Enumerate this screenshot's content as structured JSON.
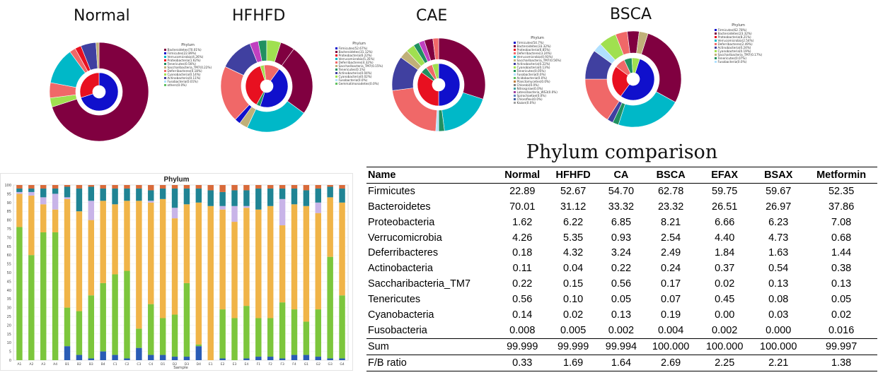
{
  "colors": {
    "Firmicutes": "#1010cc",
    "Bacteroidetes": "#800040",
    "Proteobacteria": "#e81020",
    "Verrucomicrobia": "#00b8c8",
    "Deferribacteres": "#f06868",
    "Actinobacteria": "#4040a0",
    "Saccharibacteria_TM7": "#c0b078",
    "Tenericutes": "#209060",
    "Cyanobacteria": "#a0e050",
    "Fusobacteria": "#b0e0ff",
    "Other": "#c040c0"
  },
  "bar_colors": {
    "s1": "#2a5cb5",
    "s2": "#7cc63c",
    "s3": "#f0b448",
    "s4": "#c8b4e8",
    "s5": "#208494",
    "s6": "#d86a3a"
  },
  "chart_data": [
    {
      "type": "pie",
      "title": "Normal",
      "legend_title": "Phylum",
      "legend": [
        "Bacteroidetes(70.01%)",
        "Firmicutes(22.89%)",
        "Verrucomicrobia(4.26%)",
        "Proteobacteria(1.62%)",
        "Tenericutes(0.56%)",
        "Saccharibacteria_TM7(0.22%)",
        "Deferribacteres(0.18%)",
        "Cyanobacteria(0.14%)",
        "Actinobacteria(0.11%)",
        "Fusobacteria(0.01%)",
        "others(0.0%)"
      ],
      "inner": [
        {
          "name": "Firmicutes",
          "value": 70
        },
        {
          "name": "Proteobacteria",
          "value": 30
        }
      ],
      "outer": [
        {
          "name": "Bacteroidetes",
          "value": 70.01
        },
        {
          "name": "Cyanobacteria",
          "value": 3
        },
        {
          "name": "Deferribacteres",
          "value": 5
        },
        {
          "name": "Verrucomicrobia",
          "value": 12
        },
        {
          "name": "Deferribacteres",
          "value": 2
        },
        {
          "name": "Proteobacteria",
          "value": 2
        },
        {
          "name": "Actinobacteria",
          "value": 5
        },
        {
          "name": "Saccharibacteria_TM7",
          "value": 1
        }
      ]
    },
    {
      "type": "pie",
      "title": "HFHFD",
      "legend_title": "Phylum",
      "legend": [
        "Firmicutes(52.67%)",
        "Bacteroidetes(31.12%)",
        "Proteobacteria(6.22%)",
        "Verrucomicrobia(5.35%)",
        "Deferribacteres(4.32%)",
        "Saccharibacteria_TM7(0.15%)",
        "Tenericutes(0.1%)",
        "Actinobacteria(0.04%)",
        "Cyanobacteria(0.02%)",
        "Fusobacteria(0.0%)",
        "Gemmatimonadetes(0.0%)"
      ],
      "inner": [
        {
          "name": "Firmicutes",
          "value": 45
        },
        {
          "name": "Tenericutes",
          "value": 3
        },
        {
          "name": "Proteobacteria",
          "value": 37
        },
        {
          "name": "Cyanobacteria",
          "value": 3
        },
        {
          "name": "Deferribacteres",
          "value": 12
        }
      ],
      "outer": [
        {
          "name": "Bacteroidetes",
          "value": 25
        },
        {
          "name": "Verrucomicrobia",
          "value": 22
        },
        {
          "name": "Saccharibacteria_TM7",
          "value": 3
        },
        {
          "name": "Firmicutes",
          "value": 2
        },
        {
          "name": "Deferribacteres",
          "value": 20
        },
        {
          "name": "Actinobacteria",
          "value": 12
        },
        {
          "name": "Other",
          "value": 3
        },
        {
          "name": "Tenericutes",
          "value": 3
        },
        {
          "name": "Cyanobacteria",
          "value": 5
        },
        {
          "name": "Bacteroidetes",
          "value": 5
        }
      ]
    },
    {
      "type": "pie",
      "title": "CAE",
      "legend_title": "Phylum",
      "legend": [
        "Firmicutes(54.7%)",
        "Bacteroidetes(33.32%)",
        "Proteobacteria(6.85%)",
        "Deferribacteres(3.24%)",
        "Verrucomicrobia(0.93%)",
        "Saccharibacteria_TM7(0.56%)",
        "Actinobacteria(0.22%)",
        "Cyanobacteria(0.13%)",
        "Tenericutes(0.05%)",
        "Fusobacteria(0.0%)",
        "Acidobacteria(0.0%)",
        "Planctomycetes(0.0%)",
        "Chlorobi(0.0%)",
        "Nitrospirae(0.0%)",
        "Latescibacteria_WS3(0.0%)",
        "Spirochaetae(0.0%)",
        "Chloroflexi(0.0%)",
        "Kazan(0.0%)"
      ],
      "inner": [
        {
          "name": "Firmicutes",
          "value": 50
        },
        {
          "name": "Proteobacteria",
          "value": 35
        },
        {
          "name": "Tenericutes",
          "value": 5
        },
        {
          "name": "Deferribacteres",
          "value": 5
        },
        {
          "name": "Cyanobacteria",
          "value": 5
        }
      ],
      "outer": [
        {
          "name": "Bacteroidetes",
          "value": 30
        },
        {
          "name": "Verrucomicrobia",
          "value": 18
        },
        {
          "name": "Tenericutes",
          "value": 2
        },
        {
          "name": "Fusobacteria",
          "value": 1
        },
        {
          "name": "Deferribacteres",
          "value": 22
        },
        {
          "name": "Actinobacteria",
          "value": 12
        },
        {
          "name": "Saccharibacteria_TM7",
          "value": 3
        },
        {
          "name": "Cyanobacteria",
          "value": 3
        },
        {
          "name": "Tenericutes",
          "value": 2
        },
        {
          "name": "Other",
          "value": 2
        },
        {
          "name": "Bacteroidetes",
          "value": 3
        },
        {
          "name": "Deferribacteres",
          "value": 2
        }
      ]
    },
    {
      "type": "pie",
      "title": "BSCA",
      "legend_title": "Phylum",
      "legend": [
        "Firmicutes(62.78%)",
        "Bacteroidetes(23.32%)",
        "Proteobacteria(8.21%)",
        "Verrucomicrobia(2.54%)",
        "Deferribacteres(2.49%)",
        "Actinobacteria(0.24%)",
        "Cyanobacteria(0.19%)",
        "Saccharibacteria_TM7(0.17%)",
        "Tenericutes(0.07%)",
        "Fusobacteria(0.0%)"
      ],
      "inner": [
        {
          "name": "Firmicutes",
          "value": 55
        },
        {
          "name": "Proteobacteria",
          "value": 25
        },
        {
          "name": "Deferribacteres",
          "value": 8
        },
        {
          "name": "Tenericutes",
          "value": 6
        },
        {
          "name": "Cyanobacteria",
          "value": 6
        }
      ],
      "outer": [
        {
          "name": "Bacteroidetes",
          "value": 28
        },
        {
          "name": "Verrucomicrobia",
          "value": 22
        },
        {
          "name": "Tenericutes",
          "value": 2
        },
        {
          "name": "Actinobacteria",
          "value": 2
        },
        {
          "name": "Deferribacteres",
          "value": 16
        },
        {
          "name": "Actinobacteria",
          "value": 10
        },
        {
          "name": "Fusobacteria",
          "value": 3
        },
        {
          "name": "Cyanobacteria",
          "value": 6
        },
        {
          "name": "Deferribacteres",
          "value": 4
        },
        {
          "name": "Bacteroidetes",
          "value": 4
        },
        {
          "name": "Saccharibacteria_TM7",
          "value": 3
        }
      ]
    },
    {
      "type": "bar",
      "title": "Phylum",
      "xlabel": "Sample",
      "ylim": [
        0,
        100
      ],
      "yticks": [
        0,
        5,
        10,
        15,
        20,
        25,
        30,
        35,
        40,
        45,
        50,
        55,
        60,
        65,
        70,
        75,
        80,
        85,
        90,
        95,
        100
      ],
      "categories": [
        "A1",
        "A2",
        "A3",
        "A4",
        "B1",
        "B2",
        "B3",
        "B4",
        "C1",
        "C2",
        "C3",
        "C4",
        "D1",
        "D2",
        "D3",
        "D4",
        "E1",
        "E2",
        "E3",
        "E4",
        "F1",
        "F2",
        "F3",
        "F4",
        "G1",
        "G2",
        "G3",
        "G4"
      ],
      "series": [
        {
          "name": "s1",
          "values": [
            0,
            0,
            0,
            0,
            8,
            3,
            1,
            5,
            3,
            1,
            7,
            3,
            3,
            2,
            2,
            8,
            0,
            1,
            0,
            1,
            2,
            2,
            1,
            3,
            3,
            2,
            1,
            1
          ]
        },
        {
          "name": "s2",
          "values": [
            76,
            60,
            73,
            73,
            22,
            25,
            36,
            39,
            46,
            50,
            11,
            29,
            21,
            24,
            42,
            1,
            0,
            28,
            24,
            30,
            22,
            22,
            32,
            26,
            19,
            27,
            58,
            36
          ]
        },
        {
          "name": "s3",
          "values": [
            19,
            34,
            16,
            13,
            62,
            57,
            43,
            47,
            40,
            40,
            73,
            58,
            68,
            55,
            45,
            81,
            88,
            57,
            55,
            56,
            62,
            64,
            44,
            60,
            66,
            55,
            34,
            53
          ]
        },
        {
          "name": "s4",
          "values": [
            1,
            2,
            4,
            9,
            1,
            0,
            11,
            0,
            0,
            0,
            0,
            1,
            0,
            6,
            0,
            0,
            0,
            2,
            9,
            1,
            0,
            0,
            15,
            0,
            0,
            6,
            0,
            0
          ]
        },
        {
          "name": "s5",
          "values": [
            2,
            2,
            5,
            3,
            6,
            13,
            8,
            7,
            9,
            7,
            7,
            6,
            6,
            11,
            9,
            8,
            9,
            8,
            9,
            9,
            12,
            10,
            6,
            9,
            9,
            8,
            6,
            8
          ]
        },
        {
          "name": "s6",
          "values": [
            2,
            2,
            2,
            2,
            1,
            2,
            1,
            2,
            2,
            2,
            2,
            3,
            2,
            2,
            2,
            2,
            3,
            4,
            3,
            3,
            2,
            2,
            2,
            2,
            3,
            2,
            1,
            2
          ]
        }
      ]
    },
    {
      "type": "table",
      "title": "Phylum comparison",
      "columns": [
        "Name",
        "Normal",
        "HFHFD",
        "CA",
        "BSCA",
        "EFAX",
        "BSAX",
        "Metformin"
      ],
      "rows": [
        [
          "Firmicutes",
          "22.89",
          "52.67",
          "54.70",
          "62.78",
          "59.75",
          "59.67",
          "52.35"
        ],
        [
          "Bacteroidetes",
          "70.01",
          "31.12",
          "33.32",
          "23.32",
          "26.51",
          "26.97",
          "37.86"
        ],
        [
          "Proteobacteria",
          "1.62",
          "6.22",
          "6.85",
          "8.21",
          "6.66",
          "6.23",
          "7.08"
        ],
        [
          "Verrucomicrobia",
          "4.26",
          "5.35",
          "0.93",
          "2.54",
          "4.40",
          "4.73",
          "0.68"
        ],
        [
          "Deferribacteres",
          "0.18",
          "4.32",
          "3.24",
          "2.49",
          "1.84",
          "1.63",
          "1.44"
        ],
        [
          "Actinobacteria",
          "0.11",
          "0.04",
          "0.22",
          "0.24",
          "0.37",
          "0.54",
          "0.38"
        ],
        [
          "Saccharibacteria_TM7",
          "0.22",
          "0.15",
          "0.56",
          "0.17",
          "0.02",
          "0.13",
          "0.13"
        ],
        [
          "Tenericutes",
          "0.56",
          "0.10",
          "0.05",
          "0.07",
          "0.45",
          "0.08",
          "0.05"
        ],
        [
          "Cyanobacteria",
          "0.14",
          "0.02",
          "0.13",
          "0.19",
          "0.00",
          "0.03",
          "0.02"
        ],
        [
          "Fusobacteria",
          "0.008",
          "0.005",
          "0.002",
          "0.004",
          "0.002",
          "0.000",
          "0.016"
        ]
      ],
      "sum_row": [
        "Sum",
        "99.999",
        "99.999",
        "99.994",
        "100.000",
        "100.000",
        "100.000",
        "99.997"
      ],
      "fb_row": [
        "F/B ratio",
        "0.33",
        "1.69",
        "1.64",
        "2.69",
        "2.25",
        "2.21",
        "1.38"
      ]
    }
  ]
}
